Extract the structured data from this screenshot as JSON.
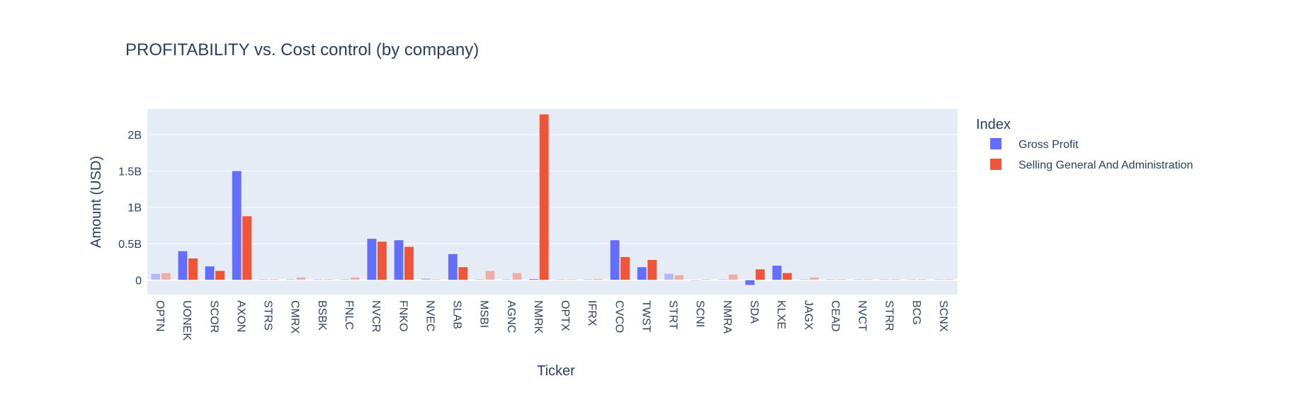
{
  "chart_data": {
    "type": "bar",
    "title": "PROFITABILITY vs. Cost control (by company)",
    "xlabel": "Ticker",
    "ylabel": "Amount (USD)",
    "ylim": [
      -0.2,
      2.35
    ],
    "yunit": "B",
    "yticks": [
      {
        "value": 0,
        "label": "0"
      },
      {
        "value": 0.5,
        "label": "0.5B"
      },
      {
        "value": 1,
        "label": "1B"
      },
      {
        "value": 1.5,
        "label": "1.5B"
      },
      {
        "value": 2,
        "label": "2B"
      }
    ],
    "grid": true,
    "legend_title": "Index",
    "legend_position": "right",
    "categories": [
      "OPTN",
      "UONEK",
      "SCOR",
      "AXON",
      "STRS",
      "CMRX",
      "BSBK",
      "FNLC",
      "NVCR",
      "FNKO",
      "NVEC",
      "SLAB",
      "MSBI",
      "AGNC",
      "NMRK",
      "OPTX",
      "IFRX",
      "CVCO",
      "TWST",
      "STRT",
      "SCNI",
      "NMRA",
      "SDA",
      "KLXE",
      "JAGX",
      "CEAD",
      "NVCT",
      "STRR",
      "BCG",
      "SCNX"
    ],
    "faded_categories": [
      "OPTN",
      "STRS",
      "CMRX",
      "BSBK",
      "FNLC",
      "NVEC",
      "MSBI",
      "AGNC",
      "OPTX",
      "IFRX",
      "STRT",
      "SCNI",
      "NMRA",
      "JAGX",
      "CEAD",
      "NVCT",
      "STRR",
      "BCG",
      "SCNX"
    ],
    "series": [
      {
        "name": "Gross Profit",
        "color": "#636efa",
        "values": [
          0.09,
          0.4,
          0.19,
          1.5,
          0.005,
          0.003,
          0.004,
          0.006,
          0.57,
          0.55,
          0.025,
          0.36,
          0.01,
          0.01,
          0.0,
          0.003,
          0.004,
          0.55,
          0.18,
          0.09,
          -0.002,
          0.005,
          -0.07,
          0.2,
          0.004,
          0.003,
          0.006,
          0.006,
          0.003,
          0.003
        ]
      },
      {
        "name": "Selling General And Administration",
        "color": "#ef553b",
        "values": [
          0.1,
          0.3,
          0.13,
          0.88,
          0.015,
          0.04,
          0.01,
          0.04,
          0.53,
          0.46,
          0.0,
          0.18,
          0.13,
          0.1,
          2.28,
          0.005,
          0.02,
          0.32,
          0.28,
          0.07,
          0.0,
          0.08,
          0.15,
          0.1,
          0.04,
          0.005,
          0.006,
          0.015,
          0.015,
          0.01
        ]
      }
    ]
  }
}
